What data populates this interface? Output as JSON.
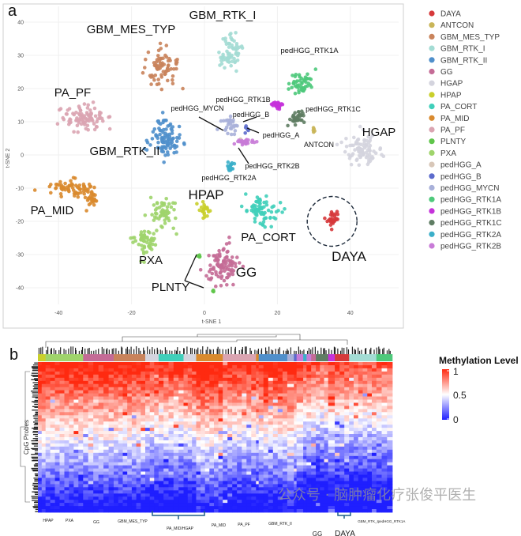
{
  "panel_a_label": "a",
  "panel_b_label": "b",
  "chart_data": [
    {
      "type": "scatter",
      "title": "",
      "xlabel": "t-SNE 1",
      "ylabel": "t-SNE 2",
      "xlim": [
        -50,
        52
      ],
      "ylim": [
        -46,
        43
      ],
      "xticks": [
        -40,
        -20,
        0,
        20,
        40
      ],
      "yticks": [
        40,
        30,
        20,
        10,
        0,
        -10,
        -20,
        -30,
        -40
      ],
      "grid": true,
      "legend_position": "right",
      "highlight": {
        "group": "DAYA",
        "style": "dashed-circle",
        "center": [
          35,
          -20
        ],
        "radius": 7
      },
      "groups": [
        {
          "name": "DAYA",
          "color": "#d6393b",
          "clusters": [
            {
              "c": [
                35,
                -20
              ],
              "s": [
                1.8,
                2
              ],
              "n": 28
            }
          ]
        },
        {
          "name": "ANTCON",
          "color": "#c9b558",
          "clusters": [
            {
              "c": [
                30,
                7.5
              ],
              "s": [
                0.2,
                0.5
              ],
              "n": 5
            }
          ]
        },
        {
          "name": "GBM_MES_TYP",
          "color": "#c9835b",
          "clusters": [
            {
              "c": [
                -12,
                26
              ],
              "s": [
                2.8,
                4.2
              ],
              "n": 75
            }
          ]
        },
        {
          "name": "GBM_RTK_I",
          "color": "#a3dcd4",
          "clusters": [
            {
              "c": [
                7,
                31
              ],
              "s": [
                2.3,
                3.6
              ],
              "n": 65
            }
          ]
        },
        {
          "name": "GBM_RTK_II",
          "color": "#4f8fcb",
          "clusters": [
            {
              "c": [
                -11,
                5
              ],
              "s": [
                2.8,
                3.8
              ],
              "n": 95
            }
          ]
        },
        {
          "name": "GG",
          "color": "#c46b96",
          "clusters": [
            {
              "c": [
                5,
                -33
              ],
              "s": [
                2.8,
                3.6
              ],
              "n": 95
            }
          ]
        },
        {
          "name": "HGAP",
          "color": "#d4d4de",
          "clusters": [
            {
              "c": [
                43,
                1.5
              ],
              "s": [
                3.6,
                3.2
              ],
              "n": 85
            }
          ]
        },
        {
          "name": "HPAP",
          "color": "#c9cf2b",
          "clusters": [
            {
              "c": [
                0,
                -17
              ],
              "s": [
                0.9,
                1.8
              ],
              "n": 22
            }
          ]
        },
        {
          "name": "PA_CORT",
          "color": "#40cfba",
          "clusters": [
            {
              "c": [
                16,
                -17
              ],
              "s": [
                2.8,
                3.4
              ],
              "n": 75
            }
          ]
        },
        {
          "name": "PA_MID",
          "color": "#d98a2e",
          "clusters": [
            {
              "c": [
                -37,
                -10
              ],
              "s": [
                4.2,
                1.8
              ],
              "n": 60
            },
            {
              "c": [
                -31,
                -13
              ],
              "s": [
                1.5,
                2.2
              ],
              "n": 30
            }
          ]
        },
        {
          "name": "PA_PF",
          "color": "#daa4b1",
          "clusters": [
            {
              "c": [
                -33,
                11
              ],
              "s": [
                4,
                2.5
              ],
              "n": 95
            }
          ]
        },
        {
          "name": "PLNTY",
          "color": "#5fc54a",
          "clusters": [
            {
              "c": [
                -1.5,
                -30.5
              ],
              "s": [
                0.4,
                0.3
              ],
              "n": 4
            },
            {
              "c": [
                2.5,
                -41
              ],
              "s": [
                0.5,
                0.3
              ],
              "n": 5
            }
          ]
        },
        {
          "name": "PXA",
          "color": "#9fd46b",
          "clusters": [
            {
              "c": [
                -11,
                -17
              ],
              "s": [
                2.2,
                3
              ],
              "n": 55
            },
            {
              "c": [
                -16,
                -26
              ],
              "s": [
                2.5,
                3
              ],
              "n": 55
            }
          ]
        },
        {
          "name": "pedHGG_A",
          "color": "#d8c7b8",
          "clusters": [
            {
              "c": [
                10,
                4.5
              ],
              "s": [
                0.8,
                0.6
              ],
              "n": 4
            }
          ]
        },
        {
          "name": "pedHGG_B",
          "color": "#5c6bcc",
          "clusters": [
            {
              "c": [
                11.5,
                8
              ],
              "s": [
                0.6,
                1.2
              ],
              "n": 6
            }
          ]
        },
        {
          "name": "pedHGG_MYCN",
          "color": "#a8b0d9",
          "clusters": [
            {
              "c": [
                7,
                9
              ],
              "s": [
                1.6,
                1.8
              ],
              "n": 28
            }
          ]
        },
        {
          "name": "pedHGG_RTK1A",
          "color": "#4ec97b",
          "clusters": [
            {
              "c": [
                26,
                22
              ],
              "s": [
                2.2,
                2.8
              ],
              "n": 50
            }
          ]
        },
        {
          "name": "pedHGG_RTK1B",
          "color": "#c532da",
          "clusters": [
            {
              "c": [
                20,
                15
              ],
              "s": [
                1.1,
                0.9
              ],
              "n": 28
            }
          ]
        },
        {
          "name": "pedHGG_RTK1C",
          "color": "#5f7d63",
          "clusters": [
            {
              "c": [
                25,
                11
              ],
              "s": [
                1.8,
                1.5
              ],
              "n": 32
            }
          ]
        },
        {
          "name": "pedHGG_RTK2A",
          "color": "#3bafc9",
          "clusters": [
            {
              "c": [
                7,
                -3.5
              ],
              "s": [
                0.7,
                1.2
              ],
              "n": 16
            }
          ]
        },
        {
          "name": "pedHGG_RTK2B",
          "color": "#c87bd7",
          "clusters": [
            {
              "c": [
                11,
                4
              ],
              "s": [
                1.8,
                0.7
              ],
              "n": 26
            }
          ]
        }
      ]
    },
    {
      "type": "heatmap",
      "ylabel": "CpG Probes",
      "legend_title": "Methylation Level",
      "color_scale": {
        "min": 0,
        "mid": 0.5,
        "max": 1,
        "low": "#1f1fff",
        "midColor": "#ffffff",
        "high": "#ff2a10"
      },
      "colorbar_ticks": [
        "1",
        "0.5",
        "0"
      ],
      "annotation_track": [
        {
          "group": "HPAP",
          "n": 23
        },
        {
          "group": "PXA",
          "n": 113
        },
        {
          "group": "GG",
          "n": 92
        },
        {
          "group": "GBM_MES_TYP",
          "n": 95
        },
        {
          "group": "HGAP",
          "n": 40
        },
        {
          "group": "PA_CORT",
          "n": 75
        },
        {
          "group": "HGAP",
          "n": 38
        },
        {
          "group": "PA_MID",
          "n": 80
        },
        {
          "group": "PA_PF",
          "n": 100
        },
        {
          "group": "PA_MID",
          "n": 8
        },
        {
          "group": "GBM_RTK_II",
          "n": 86
        },
        {
          "group": "pedHGG_MYCN",
          "n": 20
        },
        {
          "group": "pedHGG_B",
          "n": 8
        },
        {
          "group": "pedHGG_RTK2B",
          "n": 20
        },
        {
          "group": "pedHGG_RTK2A",
          "n": 10
        },
        {
          "group": "pedHGG_RTK2B",
          "n": 14
        },
        {
          "group": "GG",
          "n": 14
        },
        {
          "group": "pedHGG_RTK1C",
          "n": 37
        },
        {
          "group": "pedHGG_RTK1B",
          "n": 20
        },
        {
          "group": "DAYA",
          "n": 43
        },
        {
          "group": "GBM_RTK_I",
          "n": 82
        },
        {
          "group": "pedHGG_RTK1A",
          "n": 48
        }
      ],
      "column_labels": [
        "HPAP",
        "PXA",
        "GG",
        "GBM_MES_TYP",
        "PA_MID/HGAP",
        "PA_MID",
        "PA_PF",
        "GBM_RTK_II",
        "GG",
        "DAYA",
        "GBM_RTK_I",
        "pedHGG_RTK1A"
      ]
    }
  ],
  "watermark": "公众号 · 脑肿瘤化疗张俊平医生"
}
